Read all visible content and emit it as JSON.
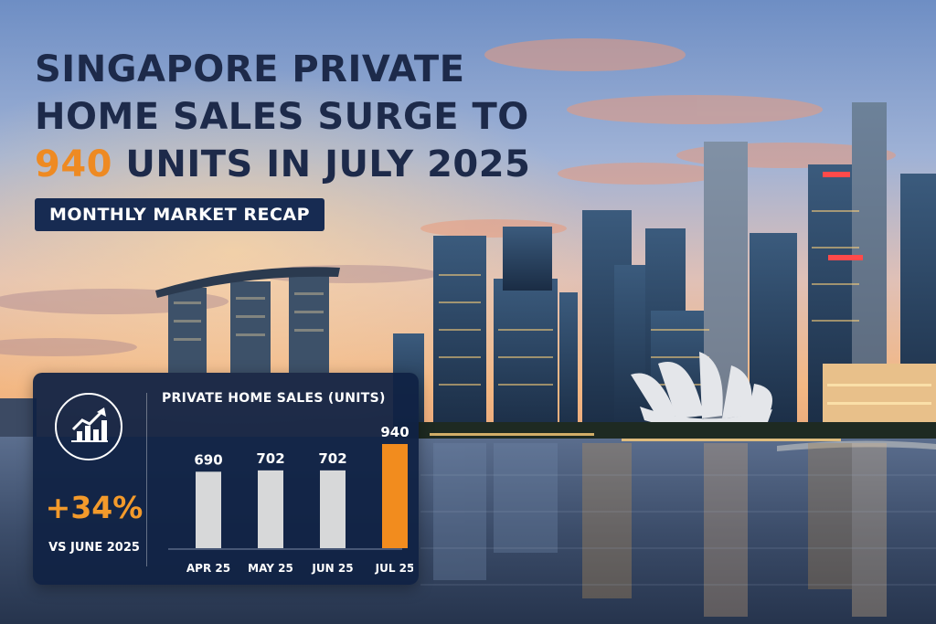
{
  "headline": {
    "line1": "SINGAPORE PRIVATE",
    "line2": "HOME SALES SURGE TO",
    "line3_highlight": "940",
    "line3_rest": " UNITS IN JULY 2025"
  },
  "tag": "MONTHLY MARKET RECAP",
  "card": {
    "icon": "chart-growth-icon",
    "change": "+34%",
    "change_sub": "VS JUNE 2025"
  },
  "chart_data": {
    "type": "bar",
    "title": "PRIVATE HOME SALES (UNITS)",
    "categories": [
      "APR 25",
      "MAY 25",
      "JUN 25",
      "JUL 25"
    ],
    "values": [
      690,
      702,
      702,
      940
    ],
    "value_labels": [
      "690",
      "702",
      "702",
      "940"
    ],
    "highlight_index": 3,
    "xlabel": "",
    "ylabel": "",
    "grid": false,
    "colors": {
      "bar": "#d7d8d9",
      "highlight": "#f28c1e",
      "label": "#ffffff",
      "axis": "#7c8aa5"
    }
  },
  "colors": {
    "headline_text": "#1d2a4a",
    "accent": "#ee8a22",
    "card_bg": "#102244",
    "tag_bg": "#172b52"
  }
}
